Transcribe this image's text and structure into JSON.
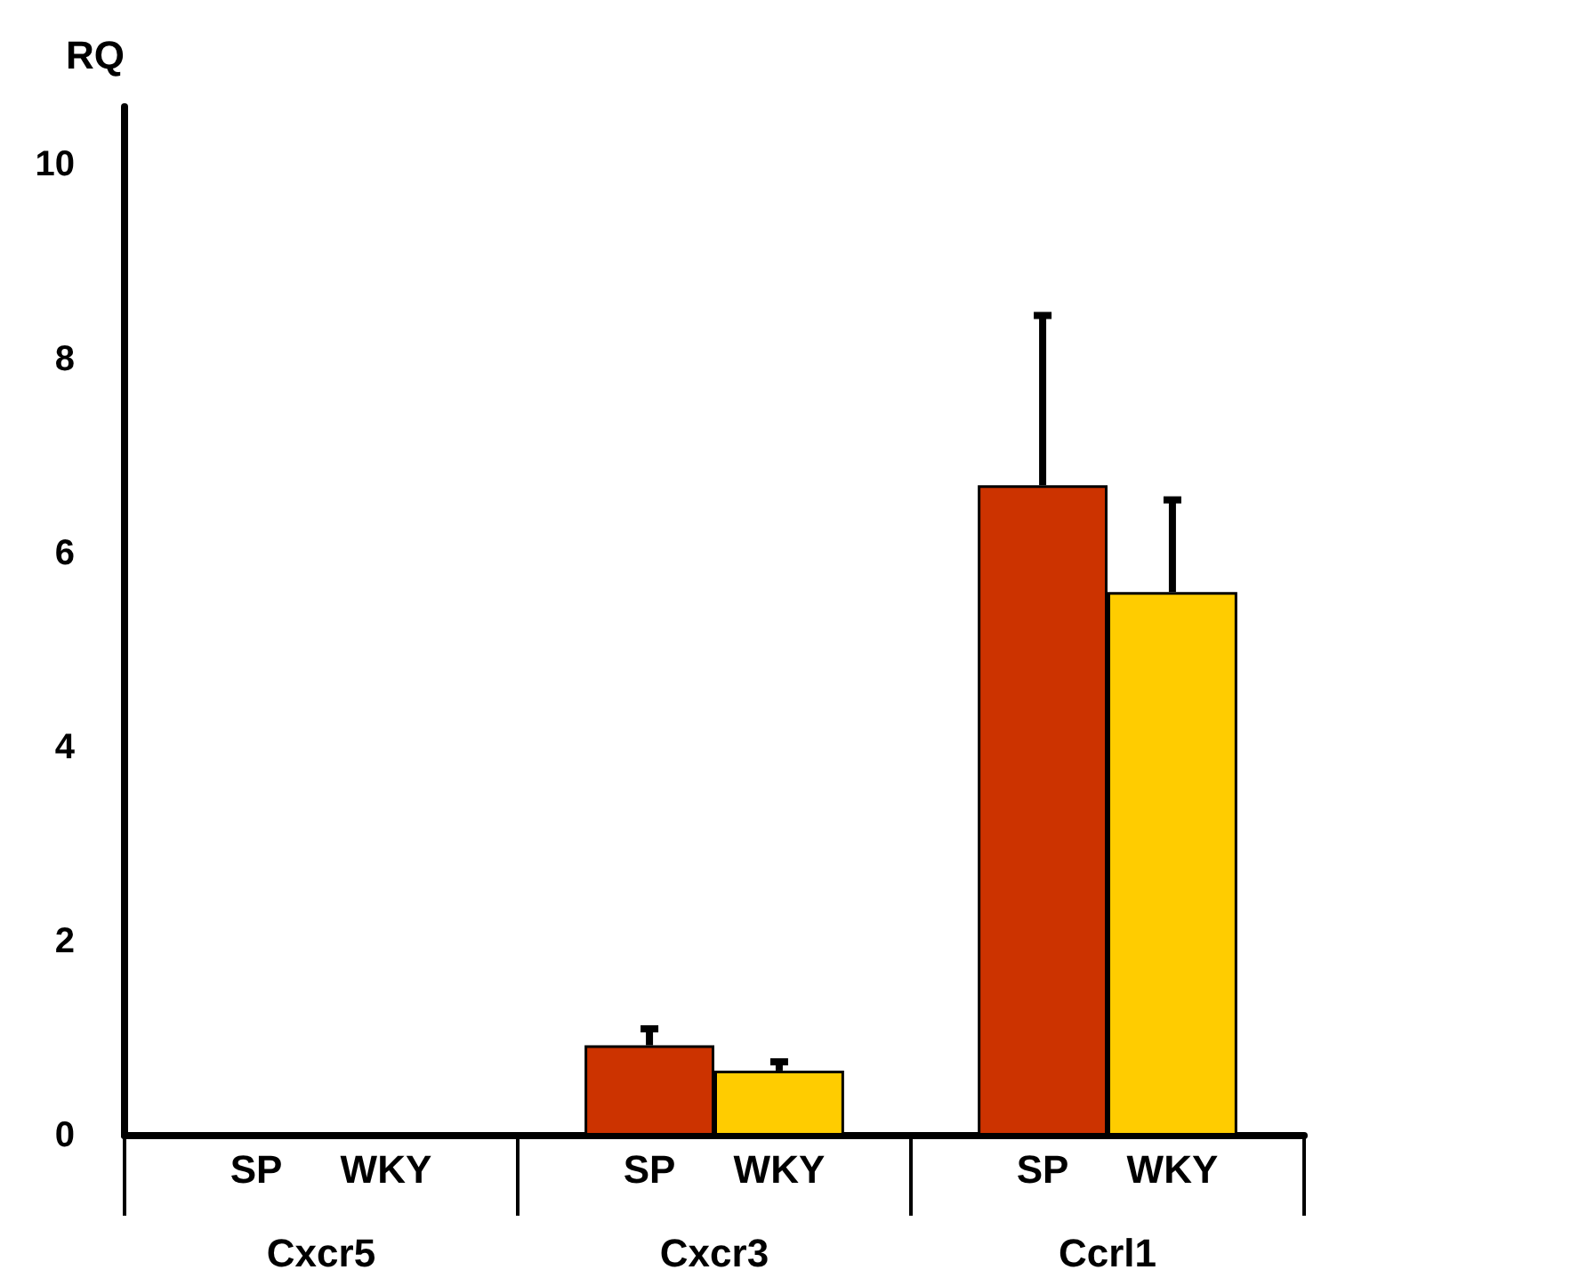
{
  "chart_data": {
    "type": "bar",
    "ylabel": "RQ",
    "categories": [
      "Cxcr5",
      "Cxcr3",
      "Ccrl1"
    ],
    "series": [
      {
        "name": "SP",
        "color": "#cc3300",
        "values": [
          0,
          0.93,
          6.7
        ],
        "errors": [
          null,
          [
            0.93,
            1.1
          ],
          [
            6.7,
            8.45
          ]
        ]
      },
      {
        "name": "WKY",
        "color": "#ffcc00",
        "values": [
          0,
          0.67,
          5.6
        ],
        "errors": [
          null,
          [
            0.67,
            0.76
          ],
          [
            5.6,
            6.55
          ]
        ]
      }
    ],
    "ylim": [
      0,
      10.6
    ],
    "yticks": [
      0,
      2,
      4,
      6,
      8,
      10
    ],
    "grid": false,
    "legend": "bottom"
  }
}
